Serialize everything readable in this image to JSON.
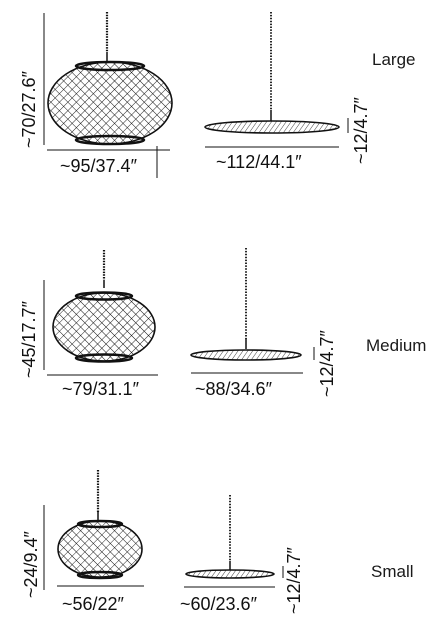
{
  "colors": {
    "line": "#111111",
    "text": "#1a1a1a",
    "background": "#ffffff"
  },
  "sizes": [
    {
      "name": "Large",
      "pendant_height": "~70/27.6″",
      "pendant_width": "~95/37.4″",
      "disc_width": "~112/44.1″",
      "disc_height": "~12/4.7″"
    },
    {
      "name": "Medium",
      "pendant_height": "~45/17.7″",
      "pendant_width": "~79/31.1″",
      "disc_width": "~88/34.6″",
      "disc_height": "~12/4.7″"
    },
    {
      "name": "Small",
      "pendant_height": "~24/9.4″",
      "pendant_width": "~56/22″",
      "disc_width": "~60/23.6″",
      "disc_height": "~12/4.7″"
    }
  ]
}
